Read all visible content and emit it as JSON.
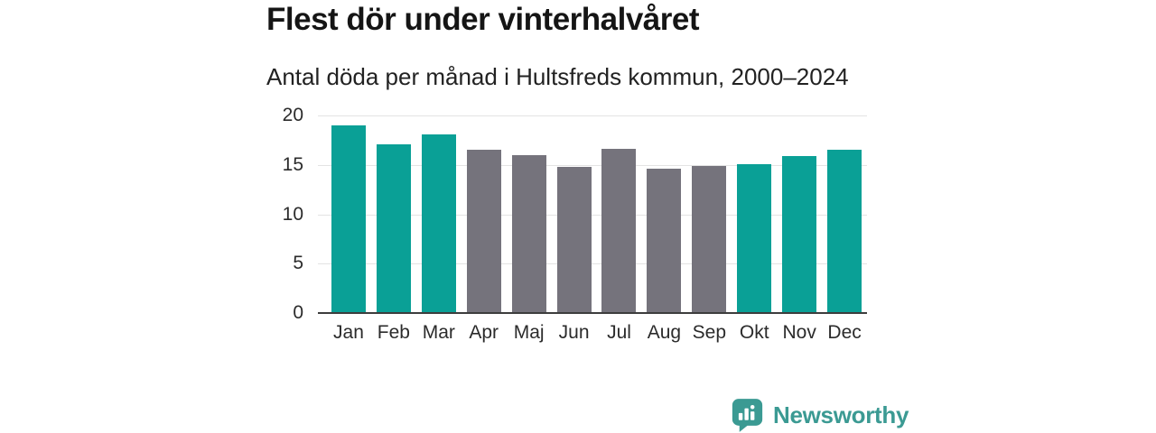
{
  "page": {
    "background": "#ffffff"
  },
  "chart_data": {
    "type": "bar",
    "title": "Flest dör under vinterhalvåret",
    "subtitle": "Antal döda per månad i Hultsfreds kommun, 2000–2024",
    "categories": [
      "Jan",
      "Feb",
      "Mar",
      "Apr",
      "Maj",
      "Jun",
      "Jul",
      "Aug",
      "Sep",
      "Okt",
      "Nov",
      "Dec"
    ],
    "values": [
      19.0,
      17.1,
      18.1,
      16.5,
      16.0,
      14.8,
      16.6,
      14.6,
      14.9,
      15.1,
      15.9,
      16.5
    ],
    "highlighted": [
      true,
      true,
      true,
      false,
      false,
      false,
      false,
      false,
      false,
      true,
      true,
      true
    ],
    "xlabel": "",
    "ylabel": "",
    "ylim": [
      0,
      20
    ],
    "yticks": [
      0,
      5,
      10,
      15,
      20
    ],
    "grid": true,
    "legend": "none",
    "colors": {
      "bar_highlight": "#0aa096",
      "bar_default": "#75737c",
      "gridline": "#e3e3e3",
      "axis_line": "#3d3d3d",
      "tick_text": "#2b2b2b",
      "title_text": "#151515"
    }
  },
  "branding": {
    "logo_text": "Newsworthy",
    "logo_color": "#3b9a93",
    "logo_icon": "bar-chart-speech-bubble"
  }
}
